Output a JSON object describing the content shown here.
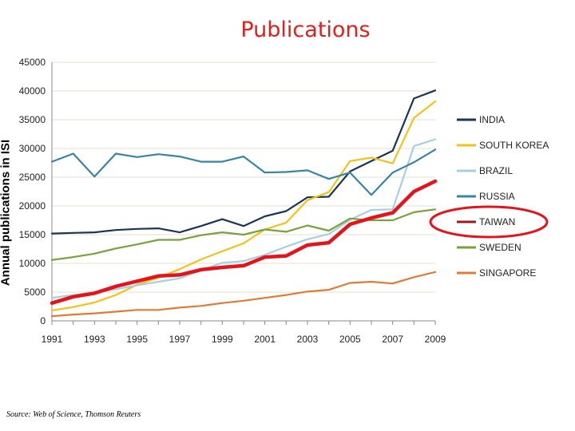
{
  "chart_data": {
    "type": "line",
    "title": "Publications",
    "ylabel": "Annual publications in ISI",
    "xlabel": "",
    "ylim": [
      0,
      45000
    ],
    "yticks": [
      0,
      5000,
      10000,
      15000,
      20000,
      25000,
      30000,
      35000,
      40000,
      45000
    ],
    "xlim": [
      1991,
      2009
    ],
    "xticks": [
      1991,
      1993,
      1995,
      1997,
      1999,
      2001,
      2003,
      2005,
      2007,
      2009
    ],
    "x": [
      1991,
      1992,
      1993,
      1994,
      1995,
      1996,
      1997,
      1998,
      1999,
      2000,
      2001,
      2002,
      2003,
      2004,
      2005,
      2006,
      2007,
      2008,
      2009
    ],
    "series": [
      {
        "name": "INDIA",
        "color": "#1a3554",
        "width": 2.2,
        "values": [
          15200,
          15300,
          15400,
          15800,
          16000,
          16100,
          15400,
          16500,
          17700,
          16500,
          18200,
          19100,
          21500,
          21600,
          26000,
          27800,
          29600,
          38700,
          40100
        ]
      },
      {
        "name": "SOUTH KOREA",
        "color": "#f2c21c",
        "width": 2.2,
        "values": [
          1800,
          2400,
          3200,
          4500,
          6300,
          7500,
          9000,
          10700,
          12100,
          13500,
          15900,
          17100,
          21000,
          22400,
          27800,
          28400,
          27400,
          35300,
          38200
        ]
      },
      {
        "name": "BRAZIL",
        "color": "#a7cfdf",
        "width": 2.2,
        "values": [
          4000,
          4500,
          4900,
          5500,
          6200,
          6800,
          7400,
          8800,
          10100,
          10400,
          11500,
          12900,
          14200,
          15100,
          17600,
          19300,
          19400,
          30400,
          31600
        ]
      },
      {
        "name": "RUSSIA",
        "color": "#3a84a3",
        "width": 2.2,
        "values": [
          27700,
          29100,
          25100,
          29100,
          28500,
          29000,
          28600,
          27700,
          27700,
          28600,
          25800,
          25900,
          26200,
          24700,
          25800,
          21900,
          25800,
          27600,
          29800
        ]
      },
      {
        "name": "TAIWAN",
        "color": "#e3141b",
        "legendColor": "#9e1a1a",
        "width": 4.5,
        "values": [
          3100,
          4200,
          4800,
          6000,
          6900,
          7800,
          8000,
          8900,
          9300,
          9600,
          11100,
          11300,
          13200,
          13600,
          16800,
          17900,
          18800,
          22500,
          24300
        ]
      },
      {
        "name": "SWEDEN",
        "color": "#7aa23c",
        "width": 2.2,
        "values": [
          10600,
          11100,
          11700,
          12600,
          13300,
          14100,
          14100,
          14900,
          15400,
          15000,
          15900,
          15500,
          16600,
          15700,
          17800,
          17500,
          17500,
          18900,
          19400
        ]
      },
      {
        "name": "SINGAPORE",
        "color": "#e07b36",
        "width": 2.2,
        "values": [
          800,
          1100,
          1300,
          1600,
          1900,
          1900,
          2300,
          2600,
          3100,
          3500,
          4000,
          4500,
          5100,
          5400,
          6600,
          6800,
          6500,
          7600,
          8500
        ]
      }
    ],
    "legend": "right",
    "highlight": "TAIWAN"
  },
  "source": "Source: Web of Science, Thomson Reuters"
}
